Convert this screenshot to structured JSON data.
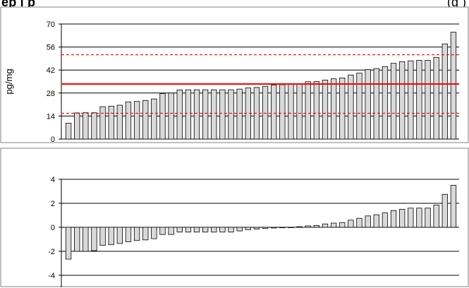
{
  "header": {
    "title_left": "ep i  p",
    "title_right": "(g  )"
  },
  "colors": {
    "bar_fill": "#d9d9d9",
    "bar_stroke": "#000000",
    "mean_line": "#ff0000",
    "limit_line": "#ff0000",
    "grid": "#000000",
    "frame": "#808080"
  },
  "chart_data": [
    {
      "type": "bar",
      "ylabel": "pg/mg",
      "xlabel": "",
      "ylim": [
        0,
        70
      ],
      "yticks": [
        0,
        14,
        28,
        42,
        56,
        70
      ],
      "grid": true,
      "reference_lines": [
        {
          "kind": "mean",
          "value": 33.5,
          "style": "solid"
        },
        {
          "kind": "upper",
          "value": 51.3,
          "style": "dashed"
        },
        {
          "kind": "lower",
          "value": 15.7,
          "style": "dashed"
        }
      ],
      "values": [
        9.7,
        15.9,
        16.0,
        16.0,
        19.7,
        20.0,
        20.6,
        22.6,
        22.9,
        23.5,
        24.4,
        27.7,
        28.0,
        29.9,
        30.0,
        30.0,
        30.0,
        30.0,
        30.0,
        30.0,
        30.4,
        31.1,
        31.4,
        32.1,
        32.8,
        33.1,
        33.4,
        33.6,
        34.9,
        35.0,
        35.9,
        36.7,
        37.2,
        39.0,
        40.1,
        42.3,
        42.9,
        44.1,
        46.1,
        47.1,
        47.6,
        47.9,
        47.9,
        49.7,
        57.9,
        65.0
      ]
    },
    {
      "type": "bar",
      "ylabel": "",
      "xlabel": "",
      "ylim": [
        -5,
        4
      ],
      "yticks": [
        -4,
        -2,
        0,
        2,
        4
      ],
      "grid": true,
      "values": [
        -2.65,
        -2.0,
        -2.0,
        -1.95,
        -1.5,
        -1.45,
        -1.35,
        -1.2,
        -1.1,
        -1.05,
        -0.95,
        -0.6,
        -0.6,
        -0.4,
        -0.4,
        -0.4,
        -0.4,
        -0.4,
        -0.4,
        -0.4,
        -0.3,
        -0.2,
        -0.15,
        -0.1,
        -0.06,
        -0.04,
        0.0,
        0.05,
        0.12,
        0.15,
        0.28,
        0.35,
        0.4,
        0.6,
        0.75,
        0.95,
        1.05,
        1.2,
        1.4,
        1.5,
        1.6,
        1.6,
        1.6,
        1.85,
        2.75,
        3.5
      ]
    }
  ]
}
